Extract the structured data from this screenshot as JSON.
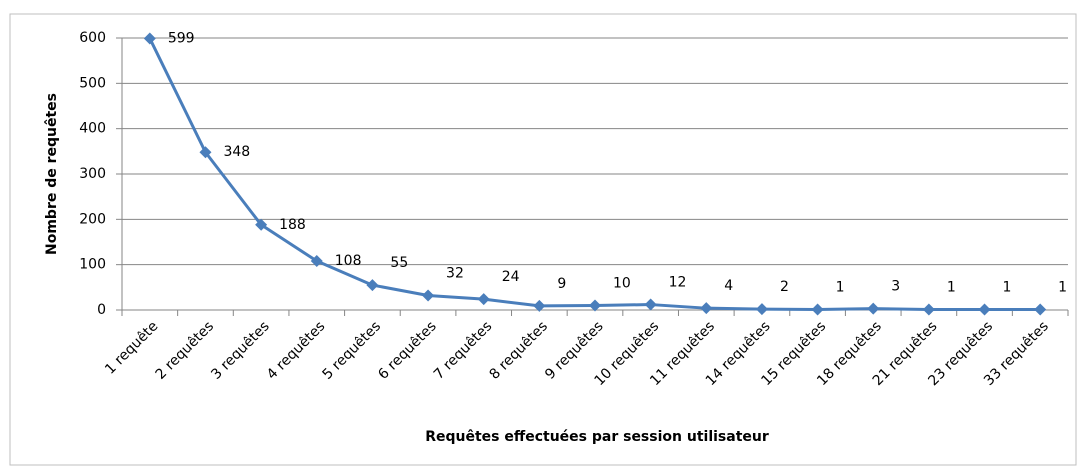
{
  "chart_data": {
    "type": "line",
    "x_label": "Requêtes effectuées par session  utilisateur",
    "y_label": "Nombre de requêtes",
    "categories": [
      "1 requête",
      "2 requêtes",
      "3 requêtes",
      "4 requêtes",
      "5 requêtes",
      "6 requêtes",
      "7 requêtes",
      "8 requêtes",
      "9 requêtes",
      "10 requêtes",
      "11 requêtes",
      "14 requêtes",
      "15 requêtes",
      "18 requêtes",
      "21 requêtes",
      "23 requêtes",
      "33 requêtes"
    ],
    "values": [
      599,
      348,
      188,
      108,
      55,
      32,
      24,
      9,
      10,
      12,
      4,
      2,
      1,
      3,
      1,
      1,
      1
    ],
    "color": "#4a7ebb",
    "ylim": [
      0,
      600
    ],
    "yticks": [
      0,
      100,
      200,
      300,
      400,
      500,
      600
    ],
    "grid": true
  }
}
